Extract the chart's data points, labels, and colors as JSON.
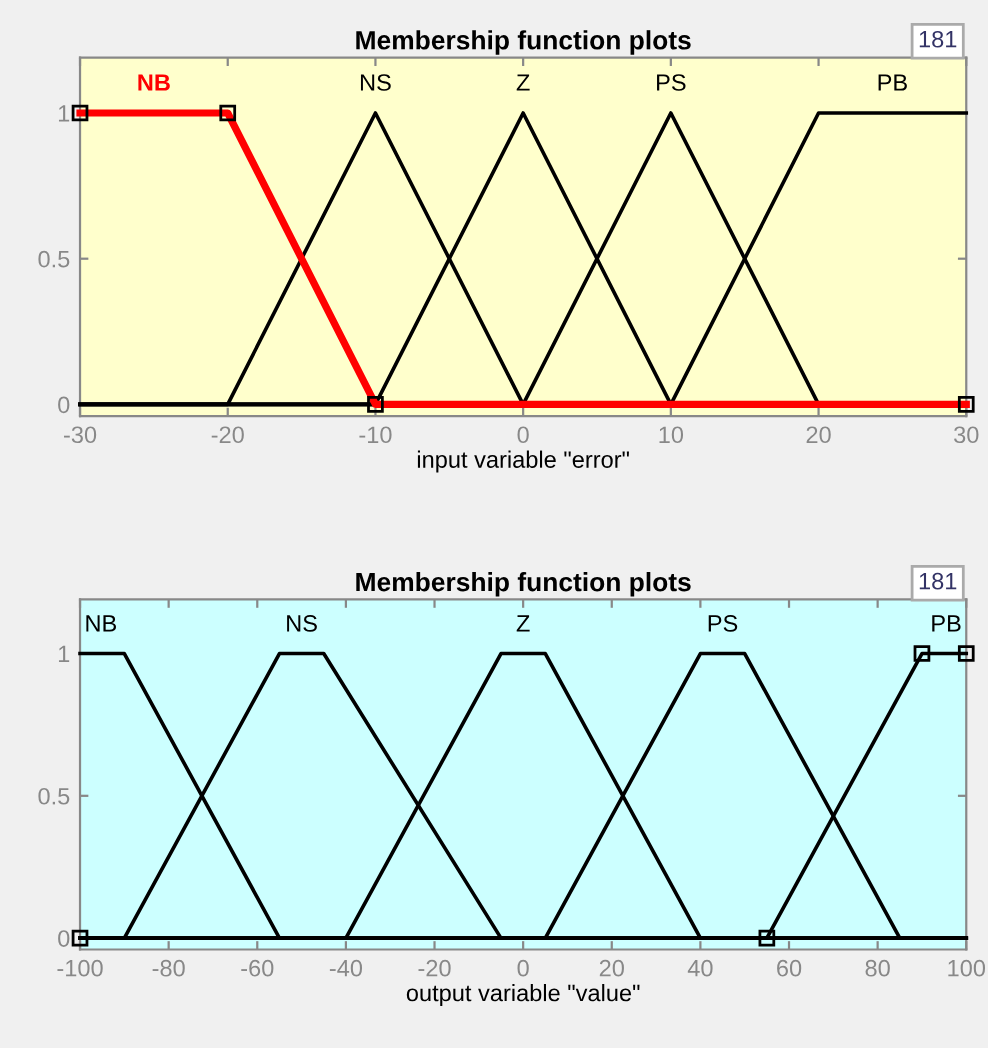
{
  "chart_data": [
    {
      "type": "line",
      "title": "Membership function plots",
      "xlabel": "input variable \"error\"",
      "annotations": [
        "181"
      ],
      "xlim": [
        -30,
        30
      ],
      "xticks": [
        -30,
        -20,
        -10,
        0,
        10,
        20,
        30
      ],
      "ylim": [
        -0.04,
        1.19
      ],
      "yticks": [
        0,
        0.5,
        1
      ],
      "grid": false,
      "legend": false,
      "line_style": "solid",
      "series": [
        {
          "name": "NB",
          "color": "#ff0000",
          "marker": "square",
          "x": [
            -30,
            -20,
            -10,
            30
          ],
          "values": [
            1,
            1,
            0,
            0
          ]
        },
        {
          "name": "NS",
          "color": "#000000",
          "marker": "none",
          "x": [
            -30,
            -20,
            -10,
            0,
            30
          ],
          "values": [
            0,
            0,
            1,
            0,
            0
          ]
        },
        {
          "name": "Z",
          "color": "#000000",
          "marker": "none",
          "x": [
            -30,
            -10,
            0,
            10,
            30
          ],
          "values": [
            0,
            0,
            1,
            0,
            0
          ]
        },
        {
          "name": "PS",
          "color": "#000000",
          "marker": "none",
          "x": [
            -30,
            0,
            10,
            20,
            30
          ],
          "values": [
            0,
            0,
            1,
            0,
            0
          ]
        },
        {
          "name": "PB",
          "color": "#000000",
          "marker": "none",
          "x": [
            -30,
            10,
            20,
            30
          ],
          "values": [
            0,
            0,
            1,
            1
          ]
        }
      ]
    },
    {
      "type": "line",
      "title": "Membership function plots",
      "xlabel": "output variable \"value\"",
      "annotations": [
        "181"
      ],
      "xlim": [
        -100,
        100
      ],
      "xticks": [
        -100,
        -80,
        -60,
        -40,
        -20,
        0,
        20,
        40,
        60,
        80,
        100
      ],
      "ylim": [
        -0.04,
        1.19
      ],
      "yticks": [
        0,
        0.5,
        1
      ],
      "grid": false,
      "legend": false,
      "line_style": "solid",
      "series": [
        {
          "name": "NB",
          "color": "#000000",
          "marker": "none",
          "x": [
            -100,
            -90,
            -55,
            100
          ],
          "values": [
            1,
            1,
            0,
            0
          ]
        },
        {
          "name": "NS",
          "color": "#000000",
          "marker": "none",
          "x": [
            -100,
            -90,
            -55,
            -45,
            -5,
            100
          ],
          "values": [
            0,
            0,
            1,
            1,
            0,
            0
          ]
        },
        {
          "name": "Z",
          "color": "#000000",
          "marker": "none",
          "x": [
            -100,
            -40,
            -5,
            5,
            40,
            100
          ],
          "values": [
            0,
            0,
            1,
            1,
            0,
            0
          ]
        },
        {
          "name": "PS",
          "color": "#000000",
          "marker": "none",
          "x": [
            -100,
            5,
            40,
            50,
            85,
            100
          ],
          "values": [
            0,
            0,
            1,
            1,
            0,
            0
          ]
        },
        {
          "name": "PB",
          "color": "#000000",
          "marker": "square",
          "x": [
            -100,
            55,
            90,
            100
          ],
          "values": [
            0,
            0,
            1,
            1
          ]
        }
      ]
    }
  ]
}
